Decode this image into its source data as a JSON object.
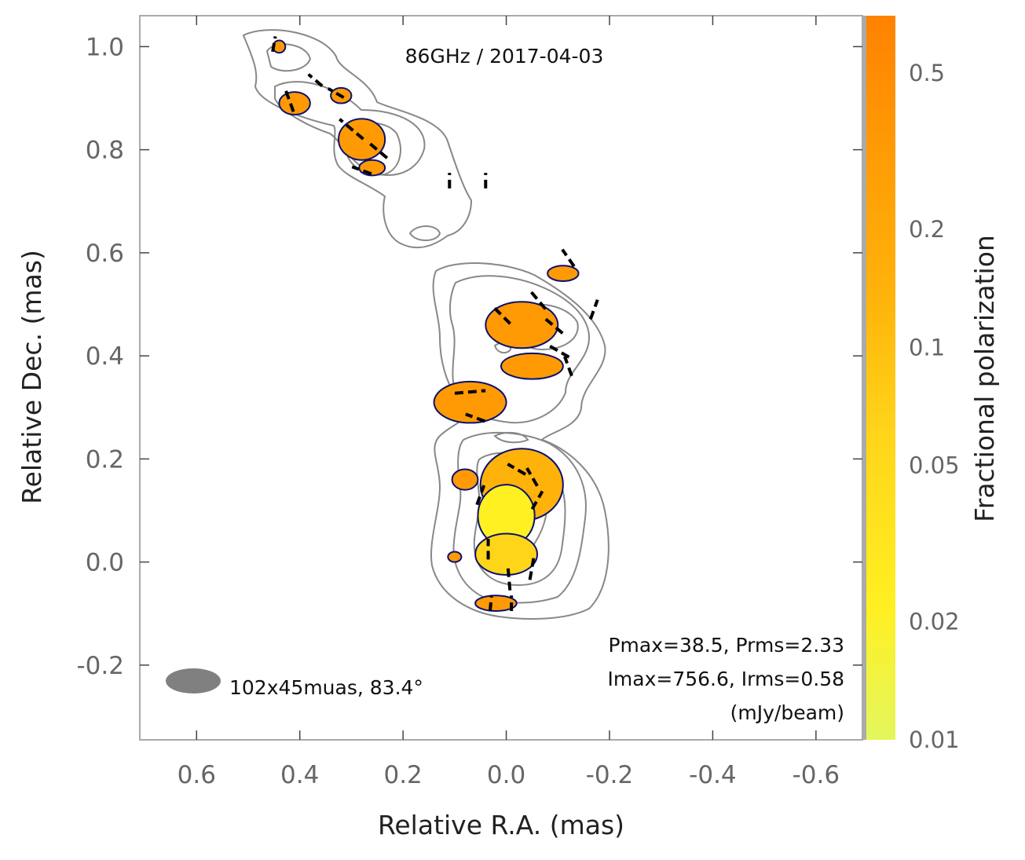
{
  "chart_data": {
    "type": "contour-map",
    "title": "86GHz / 2017-04-03",
    "xlabel": "Relative R.A. (mas)",
    "ylabel": "Relative Dec. (mas)",
    "xlim": [
      0.71,
      -0.69
    ],
    "ylim": [
      -0.345,
      1.06
    ],
    "x_ticks": [
      0.6,
      0.4,
      0.2,
      0.0,
      -0.2,
      -0.4,
      -0.6
    ],
    "x_tick_labels": [
      "0.6",
      "0.4",
      "0.2",
      "0.0",
      "-0.2",
      "-0.4",
      "-0.6"
    ],
    "y_ticks": [
      1.0,
      0.8,
      0.6,
      0.4,
      0.2,
      0.0,
      -0.2
    ],
    "y_tick_labels": [
      "1.0",
      "0.8",
      "0.6",
      "0.4",
      "0.2",
      "0.0",
      "-0.2"
    ],
    "colorbar": {
      "label": "Fractional polarization",
      "scale": "log",
      "range": [
        0.01,
        0.7
      ],
      "ticks": [
        0.5,
        0.2,
        0.1,
        0.05,
        0.02,
        0.01
      ],
      "tick_labels": [
        "0.5",
        "0.2",
        "0.1",
        "0.05",
        "0.02",
        "0.01"
      ],
      "colormap": [
        "#e3f65e",
        "#fff022",
        "#ffd51a",
        "#ffb20a",
        "#ff9a05",
        "#ff8200"
      ]
    },
    "beam": {
      "major_uas": 102,
      "minor_uas": 45,
      "pa_deg": 83.4,
      "label": "102x45muas, 83.4°"
    },
    "stats": {
      "line1": "Pmax=38.5, Prms=2.33",
      "line2": "Imax=756.6, Irms=0.58",
      "line3": "(mJy/beam)"
    },
    "polarized_regions": [
      {
        "x": 0.44,
        "y": 1.0,
        "rx": 0.012,
        "ry": 0.012,
        "frac": 0.3
      },
      {
        "x": 0.41,
        "y": 0.89,
        "rx": 0.03,
        "ry": 0.022,
        "frac": 0.3
      },
      {
        "x": 0.32,
        "y": 0.905,
        "rx": 0.02,
        "ry": 0.015,
        "frac": 0.3
      },
      {
        "x": 0.28,
        "y": 0.82,
        "rx": 0.045,
        "ry": 0.04,
        "frac": 0.3
      },
      {
        "x": 0.26,
        "y": 0.765,
        "rx": 0.025,
        "ry": 0.015,
        "frac": 0.3
      },
      {
        "x": -0.11,
        "y": 0.56,
        "rx": 0.03,
        "ry": 0.015,
        "frac": 0.3
      },
      {
        "x": -0.03,
        "y": 0.46,
        "rx": 0.07,
        "ry": 0.045,
        "frac": 0.3
      },
      {
        "x": -0.05,
        "y": 0.38,
        "rx": 0.06,
        "ry": 0.025,
        "frac": 0.3
      },
      {
        "x": 0.07,
        "y": 0.31,
        "rx": 0.07,
        "ry": 0.04,
        "frac": 0.3
      },
      {
        "x": 0.08,
        "y": 0.16,
        "rx": 0.025,
        "ry": 0.02,
        "frac": 0.3
      },
      {
        "x": -0.03,
        "y": 0.15,
        "rx": 0.08,
        "ry": 0.07,
        "frac": 0.12
      },
      {
        "x": 0.0,
        "y": 0.09,
        "rx": 0.055,
        "ry": 0.06,
        "frac": 0.03
      },
      {
        "x": 0.0,
        "y": 0.015,
        "rx": 0.06,
        "ry": 0.04,
        "frac": 0.05
      },
      {
        "x": 0.1,
        "y": 0.01,
        "rx": 0.013,
        "ry": 0.01,
        "frac": 0.3
      },
      {
        "x": 0.02,
        "y": -0.08,
        "rx": 0.04,
        "ry": 0.015,
        "frac": 0.3
      }
    ],
    "evpa_ticks": [
      {
        "x": 0.45,
        "y": 1.005,
        "len": 0.03,
        "angle": 80
      },
      {
        "x": 0.42,
        "y": 0.895,
        "len": 0.045,
        "angle": 110
      },
      {
        "x": 0.37,
        "y": 0.935,
        "len": 0.035,
        "angle": 140
      },
      {
        "x": 0.33,
        "y": 0.91,
        "len": 0.035,
        "angle": 150
      },
      {
        "x": 0.3,
        "y": 0.84,
        "len": 0.06,
        "angle": 140
      },
      {
        "x": 0.25,
        "y": 0.8,
        "len": 0.05,
        "angle": 140
      },
      {
        "x": 0.28,
        "y": 0.76,
        "len": 0.04,
        "angle": 160
      },
      {
        "x": 0.11,
        "y": 0.74,
        "len": 0.03,
        "angle": 90
      },
      {
        "x": 0.04,
        "y": 0.74,
        "len": 0.03,
        "angle": 90
      },
      {
        "x": -0.12,
        "y": 0.59,
        "len": 0.04,
        "angle": 125
      },
      {
        "x": -0.06,
        "y": 0.51,
        "len": 0.05,
        "angle": 130
      },
      {
        "x": 0.01,
        "y": 0.48,
        "len": 0.05,
        "angle": 135
      },
      {
        "x": -0.09,
        "y": 0.46,
        "len": 0.05,
        "angle": 140
      },
      {
        "x": -0.17,
        "y": 0.49,
        "len": 0.04,
        "angle": 70
      },
      {
        "x": -0.1,
        "y": 0.41,
        "len": 0.05,
        "angle": 150
      },
      {
        "x": -0.12,
        "y": 0.38,
        "len": 0.04,
        "angle": 110
      },
      {
        "x": 0.07,
        "y": 0.33,
        "len": 0.06,
        "angle": 5
      },
      {
        "x": 0.06,
        "y": 0.28,
        "len": 0.04,
        "angle": 160
      },
      {
        "x": -0.02,
        "y": 0.18,
        "len": 0.04,
        "angle": 150
      },
      {
        "x": -0.05,
        "y": 0.165,
        "len": 0.04,
        "angle": 120
      },
      {
        "x": 0.05,
        "y": 0.13,
        "len": 0.04,
        "angle": 70
      },
      {
        "x": -0.06,
        "y": 0.12,
        "len": 0.04,
        "angle": 60
      },
      {
        "x": 0.035,
        "y": 0.025,
        "len": 0.04,
        "angle": 90
      },
      {
        "x": -0.05,
        "y": -0.01,
        "len": 0.05,
        "angle": 80
      },
      {
        "x": -0.005,
        "y": -0.03,
        "len": 0.05,
        "angle": 95
      },
      {
        "x": 0.03,
        "y": -0.08,
        "len": 0.03,
        "angle": 85
      },
      {
        "x": -0.01,
        "y": -0.08,
        "len": 0.03,
        "angle": 90
      }
    ]
  }
}
